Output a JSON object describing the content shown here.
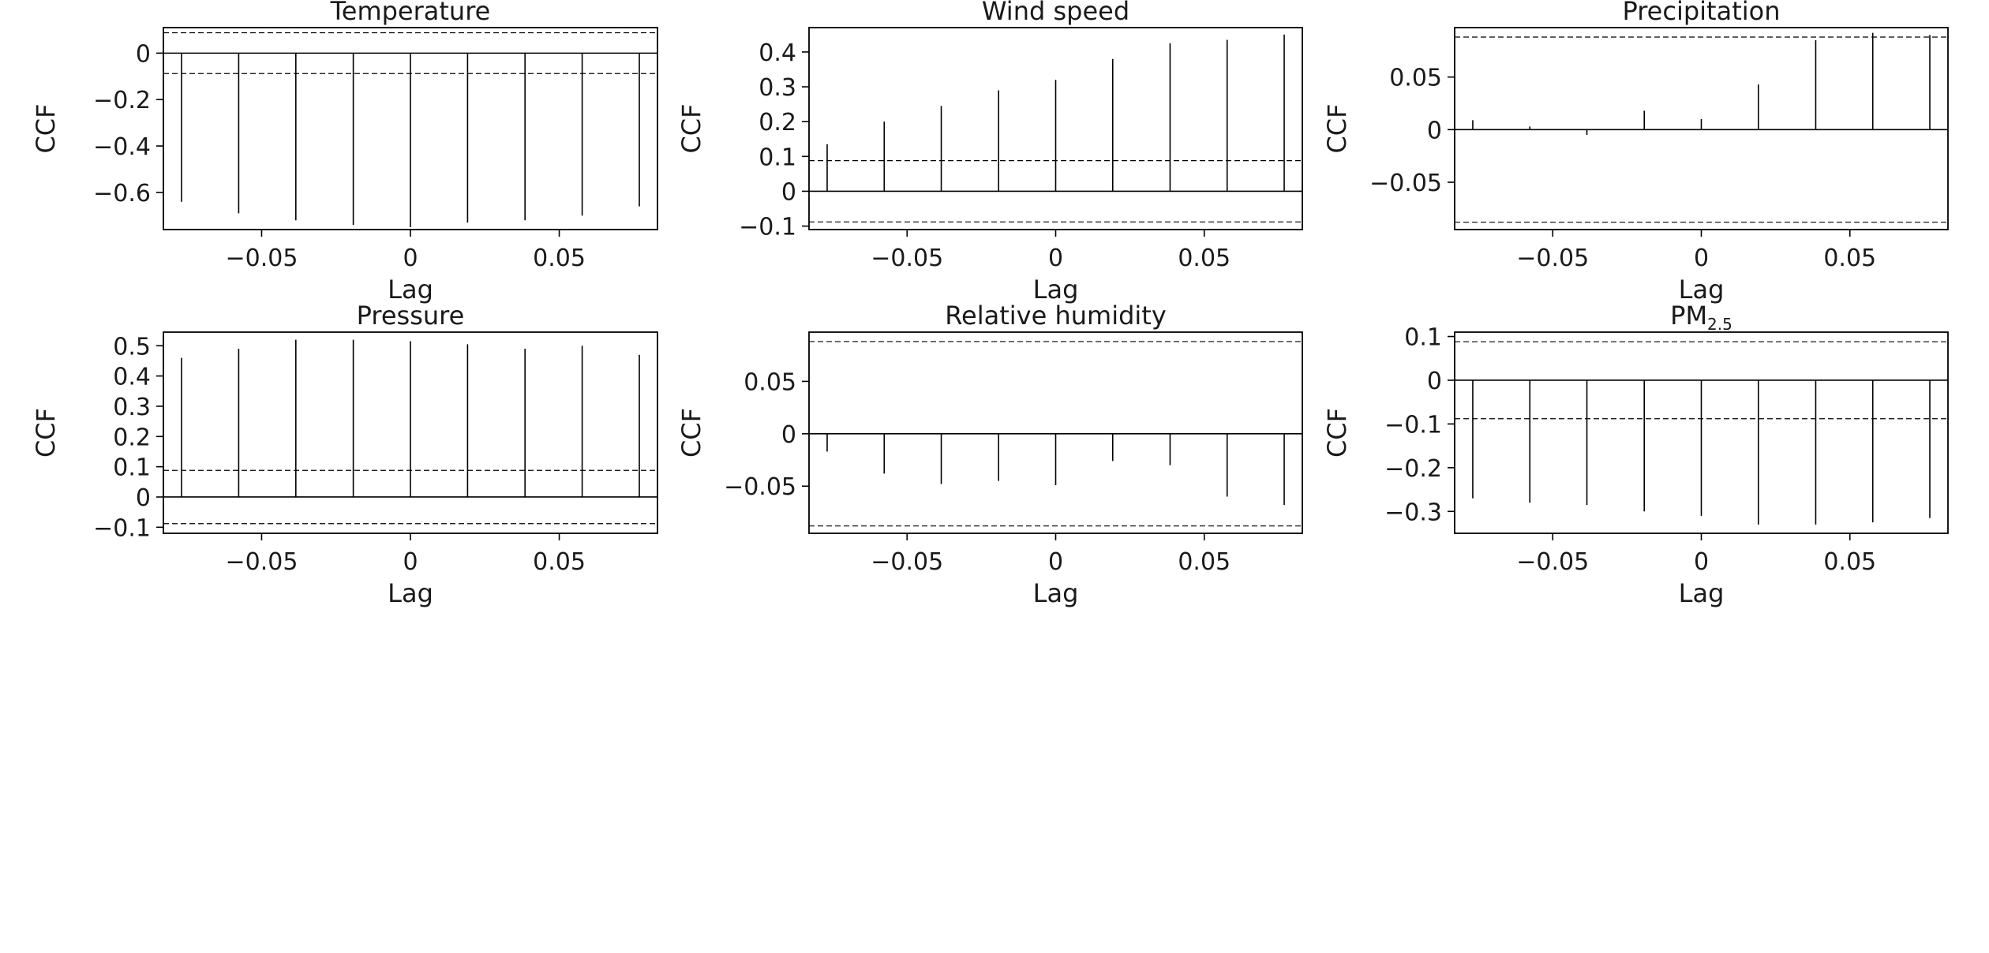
{
  "chart_data": [
    {
      "type": "stem",
      "title": "Temperature",
      "xlabel": "Lag",
      "ylabel": "CCF",
      "xlim": [
        -0.083,
        0.083
      ],
      "ylim": [
        -0.76,
        0.11
      ],
      "xticks": [
        -0.05,
        0,
        0.05
      ],
      "xtick_labels": [
        "−0.05",
        "0",
        "0.05"
      ],
      "yticks": [
        0,
        -0.2,
        -0.4,
        -0.6
      ],
      "ytick_labels": [
        "0",
        "−0.2",
        "−0.4",
        "−0.6"
      ],
      "ci": 0.088,
      "x": [
        -0.0769,
        -0.0577,
        -0.0385,
        -0.0192,
        0,
        0.0192,
        0.0385,
        0.0577,
        0.0769
      ],
      "values": [
        -0.64,
        -0.69,
        -0.72,
        -0.74,
        -0.75,
        -0.73,
        -0.72,
        -0.7,
        -0.66
      ]
    },
    {
      "type": "stem",
      "title": "Wind speed",
      "xlabel": "Lag",
      "ylabel": "CCF",
      "xlim": [
        -0.083,
        0.083
      ],
      "ylim": [
        -0.11,
        0.47
      ],
      "xticks": [
        -0.05,
        0,
        0.05
      ],
      "xtick_labels": [
        "−0.05",
        "0",
        "0.05"
      ],
      "yticks": [
        0.4,
        0.3,
        0.2,
        0.1,
        0,
        -0.1
      ],
      "ytick_labels": [
        "0.4",
        "0.3",
        "0.2",
        "0.1",
        "0",
        "−0.1"
      ],
      "ci": 0.088,
      "x": [
        -0.0769,
        -0.0577,
        -0.0385,
        -0.0192,
        0,
        0.0192,
        0.0385,
        0.0577,
        0.0769
      ],
      "values": [
        0.135,
        0.2,
        0.245,
        0.29,
        0.32,
        0.38,
        0.425,
        0.435,
        0.45
      ]
    },
    {
      "type": "stem",
      "title": "Precipitation",
      "xlabel": "Lag",
      "ylabel": "CCF",
      "xlim": [
        -0.083,
        0.083
      ],
      "ylim": [
        -0.095,
        0.097
      ],
      "xticks": [
        -0.05,
        0,
        0.05
      ],
      "xtick_labels": [
        "−0.05",
        "0",
        "0.05"
      ],
      "yticks": [
        0.05,
        0,
        -0.05
      ],
      "ytick_labels": [
        "0.05",
        "0",
        "−0.05"
      ],
      "ci": 0.088,
      "x": [
        -0.0769,
        -0.0577,
        -0.0385,
        -0.0192,
        0,
        0.0192,
        0.0385,
        0.0577,
        0.0769
      ],
      "values": [
        0.009,
        0.003,
        -0.005,
        0.018,
        0.01,
        0.043,
        0.085,
        0.092,
        0.09
      ]
    },
    {
      "type": "stem",
      "title": "Pressure",
      "xlabel": "Lag",
      "ylabel": "CCF",
      "xlim": [
        -0.083,
        0.083
      ],
      "ylim": [
        -0.12,
        0.545
      ],
      "xticks": [
        -0.05,
        0,
        0.05
      ],
      "xtick_labels": [
        "−0.05",
        "0",
        "0.05"
      ],
      "yticks": [
        0.5,
        0.4,
        0.3,
        0.2,
        0.1,
        0,
        -0.1
      ],
      "ytick_labels": [
        "0.5",
        "0.4",
        "0.3",
        "0.2",
        "0.1",
        "0",
        "−0.1"
      ],
      "ci": 0.088,
      "x": [
        -0.0769,
        -0.0577,
        -0.0385,
        -0.0192,
        0,
        0.0192,
        0.0385,
        0.0577,
        0.0769
      ],
      "values": [
        0.46,
        0.49,
        0.52,
        0.52,
        0.515,
        0.505,
        0.49,
        0.5,
        0.47
      ]
    },
    {
      "type": "stem",
      "title": "Relative humidity",
      "xlabel": "Lag",
      "ylabel": "CCF",
      "xlim": [
        -0.083,
        0.083
      ],
      "ylim": [
        -0.095,
        0.097
      ],
      "xticks": [
        -0.05,
        0,
        0.05
      ],
      "xtick_labels": [
        "−0.05",
        "0",
        "0.05"
      ],
      "yticks": [
        0.05,
        0,
        -0.05
      ],
      "ytick_labels": [
        "0.05",
        "0",
        "−0.05"
      ],
      "ci": 0.088,
      "x": [
        -0.0769,
        -0.0577,
        -0.0385,
        -0.0192,
        0,
        0.0192,
        0.0385,
        0.0577,
        0.0769
      ],
      "values": [
        -0.017,
        -0.038,
        -0.048,
        -0.045,
        -0.049,
        -0.026,
        -0.03,
        -0.06,
        -0.068
      ]
    },
    {
      "type": "stem",
      "title": "PM",
      "title_sub": "2.5",
      "xlabel": "Lag",
      "ylabel": "CCF",
      "xlim": [
        -0.083,
        0.083
      ],
      "ylim": [
        -0.35,
        0.11
      ],
      "xticks": [
        -0.05,
        0,
        0.05
      ],
      "xtick_labels": [
        "−0.05",
        "0",
        "0.05"
      ],
      "yticks": [
        0.1,
        0,
        -0.1,
        -0.2,
        -0.3
      ],
      "ytick_labels": [
        "0.1",
        "0",
        "−0.1",
        "−0.2",
        "−0.3"
      ],
      "ci": 0.088,
      "x": [
        -0.0769,
        -0.0577,
        -0.0385,
        -0.0192,
        0,
        0.0192,
        0.0385,
        0.0577,
        0.0769
      ],
      "values": [
        -0.27,
        -0.28,
        -0.285,
        -0.3,
        -0.31,
        -0.33,
        -0.33,
        -0.325,
        -0.315
      ]
    }
  ]
}
